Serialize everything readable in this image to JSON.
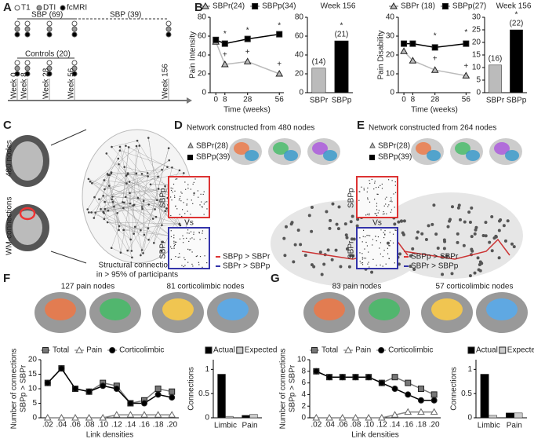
{
  "panel_letters": [
    "A",
    "B",
    "C",
    "D",
    "E",
    "F",
    "G"
  ],
  "panel_a": {
    "legend": [
      "T1",
      "DTI",
      "fcMRI"
    ],
    "cohorts": [
      "SBP (69)",
      "SBP (39)",
      "Controls (20)"
    ],
    "weeks": [
      "Week 0",
      "Week 8",
      "Week 28",
      "Week 56",
      "Week 156"
    ]
  },
  "panel_c": {
    "labels": [
      "480 nodes",
      "WM-connections"
    ],
    "caption": [
      "Structural connections",
      "in > 95% of participants"
    ]
  },
  "panel_d": {
    "title": "Network constructed from 480 nodes",
    "legend": [
      "SBPr(28)",
      "SBPp(39)"
    ],
    "matrix_labels": [
      "SBPp",
      "Vs",
      "SBPr"
    ],
    "edge_legend": [
      "SBPp > SBPr",
      "SBPr > SBPp"
    ]
  },
  "panel_e": {
    "title": "Network constructed from 264 nodes",
    "legend": [
      "SBPr(28)",
      "SBPp(39)"
    ],
    "matrix_labels": [
      "SBPp",
      "Vs",
      "SBPr"
    ],
    "edge_legend": [
      "SBPp > SBPr",
      "SBPr > SBPp"
    ]
  },
  "panel_f": {
    "node_sets": [
      "127 pain nodes",
      "81 corticolimbic nodes"
    ]
  },
  "panel_g": {
    "node_sets": [
      "83 pain nodes",
      "57 corticolimbic nodes"
    ]
  },
  "chart_data": [
    {
      "type": "line",
      "ylabel": "Pain Intensity",
      "xlabel": "Time (weeks)",
      "x": [
        0,
        8,
        28,
        56
      ],
      "xlim": [
        -5,
        60
      ],
      "xticks": [
        0,
        8,
        28,
        56
      ],
      "ylim": [
        0,
        80
      ],
      "yticks": [
        0,
        20,
        40,
        60,
        80
      ],
      "series": [
        {
          "name": "SBPr(24)",
          "color": "#bbbbbb",
          "marker": "triangle",
          "values": [
            54,
            30,
            33,
            20
          ]
        },
        {
          "name": "SBPp(34)",
          "color": "#000000",
          "marker": "square",
          "values": [
            56,
            52,
            57,
            62
          ]
        }
      ],
      "annotations": [
        {
          "text": "*",
          "x": 8,
          "y": 62
        },
        {
          "text": "*",
          "x": 28,
          "y": 66
        },
        {
          "text": "*",
          "x": 56,
          "y": 71
        },
        {
          "text": "+",
          "x": 8,
          "y": 40
        },
        {
          "text": "+",
          "x": 28,
          "y": 43
        },
        {
          "text": "+",
          "x": 56,
          "y": 30
        }
      ]
    },
    {
      "type": "bar",
      "title": "Week 156",
      "categories": [
        "SBPr",
        "SBPp"
      ],
      "values": [
        26,
        55
      ],
      "colors": [
        "#bbbbbb",
        "#000000"
      ],
      "ylim": [
        0,
        80
      ],
      "yticks": [
        0,
        20,
        40,
        60,
        80
      ],
      "annotations": [
        {
          "text": "(14)",
          "category": "SBPr"
        },
        {
          "text": "(21)",
          "category": "SBPp"
        },
        {
          "text": "*",
          "category": "SBPp"
        }
      ]
    },
    {
      "type": "line",
      "ylabel": "Pain Disability",
      "xlabel": "Time (weeks)",
      "x": [
        0,
        8,
        28,
        56
      ],
      "xlim": [
        -5,
        60
      ],
      "xticks": [
        0,
        8,
        28,
        56
      ],
      "ylim": [
        0,
        40
      ],
      "yticks": [
        0,
        10,
        20,
        30,
        40
      ],
      "series": [
        {
          "name": "SBPr (18)",
          "color": "#bbbbbb",
          "marker": "triangle",
          "values": [
            22,
            17,
            12,
            9
          ]
        },
        {
          "name": "SBPp(27)",
          "color": "#000000",
          "marker": "square",
          "values": [
            26,
            26,
            24,
            26
          ]
        }
      ],
      "annotations": [
        {
          "text": "*",
          "x": 28,
          "y": 30
        },
        {
          "text": "*",
          "x": 56,
          "y": 32
        },
        {
          "text": "+",
          "x": 28,
          "y": 18
        },
        {
          "text": "+",
          "x": 56,
          "y": 14
        }
      ]
    },
    {
      "type": "bar",
      "title": "Week 156",
      "categories": [
        "SBPr",
        "SBPp"
      ],
      "values": [
        11,
        25
      ],
      "colors": [
        "#bbbbbb",
        "#000000"
      ],
      "ylim": [
        0,
        30
      ],
      "yticks": [
        0,
        5,
        10,
        15,
        20,
        25,
        30
      ],
      "annotations": [
        {
          "text": "(16)",
          "category": "SBPr"
        },
        {
          "text": "(22)",
          "category": "SBPp"
        },
        {
          "text": "*",
          "category": "SBPp"
        }
      ]
    },
    {
      "type": "line",
      "ylabel": [
        "Number of connections",
        "SBPp > SBPr"
      ],
      "xlabel": "Link densities",
      "categories": [
        ".02",
        ".04",
        ".06",
        ".08",
        ".10",
        ".12",
        ".14",
        ".16",
        ".18",
        ".20"
      ],
      "ylim": [
        0,
        20
      ],
      "yticks": [
        0,
        5,
        10,
        15,
        20
      ],
      "series": [
        {
          "name": "Total",
          "color": "#777777",
          "marker": "square",
          "values": [
            12,
            17,
            10,
            9,
            12,
            11,
            5,
            6,
            10,
            9
          ]
        },
        {
          "name": "Pain",
          "color": "#ffffff",
          "marker": "triangle",
          "values": [
            0,
            0,
            0,
            0,
            0,
            1,
            1,
            1,
            1,
            1
          ]
        },
        {
          "name": "Corticolimbic",
          "color": "#000000",
          "marker": "circle",
          "values": [
            12,
            17,
            10,
            9,
            11,
            10,
            5,
            5,
            8,
            7
          ]
        }
      ]
    },
    {
      "type": "bar",
      "ylabel": "Connections",
      "categories": [
        "Limbic",
        "Pain"
      ],
      "ylim": [
        0,
        1.2
      ],
      "yticks": [
        0,
        0.5,
        1
      ],
      "series": [
        {
          "name": "Actual",
          "color": "#000000",
          "values": [
            0.9,
            0.05
          ]
        },
        {
          "name": "Expected",
          "color": "#cccccc",
          "values": [
            0.03,
            0.07
          ]
        }
      ]
    },
    {
      "type": "line",
      "ylabel": [
        "Number of connections",
        "SBPp > SBPr"
      ],
      "xlabel": "Link densities",
      "categories": [
        ".02",
        ".04",
        ".06",
        ".08",
        ".10",
        ".12",
        ".14",
        ".16",
        ".18",
        ".20"
      ],
      "ylim": [
        0,
        10
      ],
      "yticks": [
        0,
        2,
        4,
        6,
        8,
        10
      ],
      "series": [
        {
          "name": "Total",
          "color": "#777777",
          "marker": "square",
          "values": [
            8,
            7,
            7,
            7,
            7,
            6,
            7,
            6,
            5,
            4
          ]
        },
        {
          "name": "Pain",
          "color": "#ffffff",
          "marker": "triangle",
          "values": [
            0,
            0,
            0,
            0,
            0,
            0,
            0.5,
            1,
            1,
            1
          ]
        },
        {
          "name": "Corticolimbic",
          "color": "#000000",
          "marker": "circle",
          "values": [
            8,
            7,
            7,
            7,
            7,
            6,
            5,
            4,
            3,
            3
          ]
        }
      ]
    },
    {
      "type": "bar",
      "ylabel": "Connections",
      "categories": [
        "Limbic",
        "Pain"
      ],
      "ylim": [
        0,
        1.2
      ],
      "yticks": [
        0,
        0.5,
        1
      ],
      "series": [
        {
          "name": "Actual",
          "color": "#000000",
          "values": [
            0.9,
            0.1
          ]
        },
        {
          "name": "Expected",
          "color": "#cccccc",
          "values": [
            0.05,
            0.1
          ]
        }
      ]
    }
  ]
}
